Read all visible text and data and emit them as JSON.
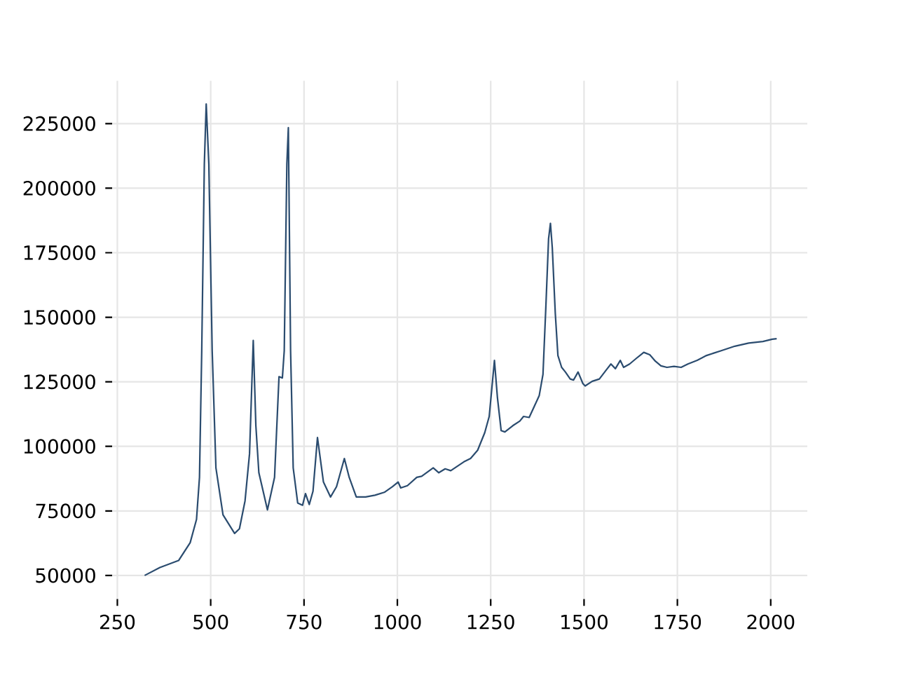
{
  "chart_data": {
    "type": "line",
    "color": "#2b4c6f",
    "line_style": "solid",
    "grid": true,
    "xlim": [
      236,
      2098
    ],
    "ylim": [
      40900,
      241600
    ],
    "xticks": [
      250,
      500,
      750,
      1000,
      1250,
      1500,
      1750,
      2000
    ],
    "yticks": [
      50000,
      75000,
      100000,
      125000,
      150000,
      175000,
      200000,
      225000
    ],
    "x": [
      323,
      364,
      414,
      445,
      462,
      470,
      476,
      483,
      488,
      495,
      504,
      514,
      533,
      564,
      577,
      592,
      604,
      614,
      621,
      629,
      652,
      671,
      683,
      692,
      697,
      704,
      708,
      714,
      721,
      733,
      746,
      754,
      764,
      774,
      786,
      802,
      821,
      837,
      858,
      871,
      890,
      915,
      940,
      965,
      987,
      1002,
      1009,
      1027,
      1052,
      1065,
      1096,
      1111,
      1128,
      1143,
      1178,
      1196,
      1215,
      1234,
      1246,
      1253,
      1260,
      1268,
      1278,
      1288,
      1309,
      1328,
      1338,
      1353,
      1363,
      1380,
      1390,
      1398,
      1405,
      1410,
      1415,
      1423,
      1430,
      1440,
      1450,
      1463,
      1472,
      1484,
      1497,
      1503,
      1522,
      1541,
      1560,
      1572,
      1584,
      1597,
      1606,
      1622,
      1641,
      1660,
      1676,
      1691,
      1706,
      1722,
      1741,
      1760,
      1778,
      1803,
      1828,
      1866,
      1904,
      1941,
      1979,
      2004,
      2016
    ],
    "values": [
      50000,
      53100,
      55800,
      62700,
      71700,
      88000,
      137000,
      209400,
      232600,
      209400,
      137000,
      91700,
      73500,
      66300,
      68100,
      78900,
      97100,
      141000,
      108000,
      89800,
      75400,
      88000,
      127000,
      126500,
      137000,
      209400,
      223400,
      137000,
      91700,
      78100,
      77200,
      81700,
      77500,
      82600,
      103400,
      86200,
      80400,
      84400,
      95300,
      88000,
      80400,
      80400,
      81100,
      82200,
      84400,
      86200,
      83900,
      84800,
      88000,
      88400,
      91700,
      89800,
      91300,
      90600,
      94000,
      95300,
      98500,
      105300,
      111600,
      122400,
      133300,
      118900,
      106100,
      105600,
      108000,
      109800,
      111600,
      111200,
      114300,
      119700,
      127900,
      155000,
      180400,
      186400,
      176800,
      151500,
      135200,
      130600,
      128800,
      126100,
      125700,
      128800,
      124300,
      123400,
      125200,
      126100,
      129700,
      131900,
      130100,
      133300,
      130600,
      131900,
      134200,
      136400,
      135500,
      133000,
      131200,
      130600,
      131000,
      130600,
      131900,
      133300,
      135200,
      137000,
      138800,
      140000,
      140600,
      141500,
      141700
    ]
  }
}
